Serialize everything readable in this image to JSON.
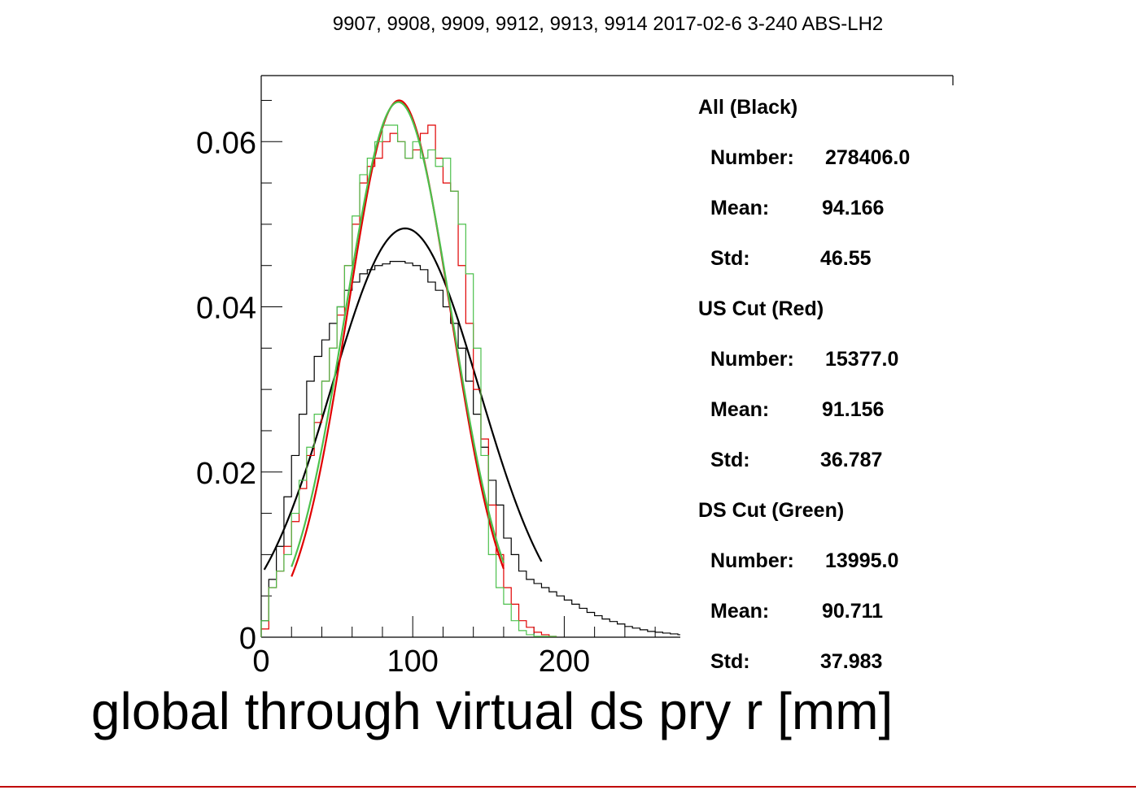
{
  "chart_data": {
    "type": "line",
    "title": "9907, 9908, 9909, 9912, 9913, 9914 2017-02-6 3-240 ABS-LH2",
    "xlabel": "global through virtual ds pry r [mm]",
    "ylabel": "",
    "xlim": [
      0,
      280
    ],
    "ylim": [
      0,
      0.068
    ],
    "x_ticks": [
      0,
      100,
      200
    ],
    "x_tick_labels": [
      "0",
      "100",
      "200"
    ],
    "y_ticks": [
      0,
      0.02,
      0.04,
      0.06
    ],
    "y_tick_labels": [
      "0",
      "0.02",
      "0.04",
      "0.06"
    ],
    "grid": false,
    "bin_width": 10,
    "series": [
      {
        "name": "All (Black)",
        "color": "#000000",
        "hist_x": [
          0,
          5,
          10,
          15,
          20,
          25,
          30,
          35,
          40,
          45,
          50,
          55,
          60,
          65,
          70,
          75,
          80,
          85,
          90,
          95,
          100,
          105,
          110,
          115,
          120,
          125,
          130,
          135,
          140,
          145,
          150,
          155,
          160,
          165,
          170,
          175,
          180,
          185,
          190,
          195,
          200,
          205,
          210,
          215,
          220,
          225,
          230,
          235,
          240,
          245,
          250,
          255,
          260,
          265,
          270,
          275
        ],
        "hist_y": [
          0.002,
          0.007,
          0.011,
          0.017,
          0.022,
          0.027,
          0.031,
          0.034,
          0.036,
          0.038,
          0.04,
          0.042,
          0.043,
          0.044,
          0.0445,
          0.045,
          0.0452,
          0.0455,
          0.0455,
          0.0453,
          0.045,
          0.0445,
          0.043,
          0.042,
          0.04,
          0.038,
          0.035,
          0.031,
          0.027,
          0.023,
          0.019,
          0.016,
          0.012,
          0.01,
          0.008,
          0.007,
          0.0065,
          0.006,
          0.0055,
          0.005,
          0.0045,
          0.004,
          0.0035,
          0.003,
          0.0026,
          0.0022,
          0.0019,
          0.0016,
          0.0013,
          0.0011,
          0.0009,
          0.0007,
          0.0006,
          0.0005,
          0.0004,
          0.0003
        ],
        "fit": {
          "amplitude": 0.0495,
          "mean": 95,
          "sigma": 49,
          "x_range": [
            2,
            185
          ]
        }
      },
      {
        "name": "US Cut (Red)",
        "color": "#e00000",
        "hist_x": [
          0,
          5,
          10,
          15,
          20,
          25,
          30,
          35,
          40,
          45,
          50,
          55,
          60,
          65,
          70,
          75,
          80,
          85,
          90,
          95,
          100,
          105,
          110,
          115,
          120,
          125,
          130,
          135,
          140,
          145,
          150,
          155,
          160,
          165,
          170,
          175,
          180,
          185,
          190
        ],
        "hist_y": [
          0.001,
          0.006,
          0.008,
          0.011,
          0.014,
          0.018,
          0.022,
          0.026,
          0.031,
          0.035,
          0.039,
          0.045,
          0.05,
          0.055,
          0.057,
          0.058,
          0.06,
          0.061,
          0.06,
          0.058,
          0.059,
          0.061,
          0.062,
          0.058,
          0.055,
          0.054,
          0.045,
          0.038,
          0.03,
          0.024,
          0.016,
          0.01,
          0.006,
          0.004,
          0.002,
          0.0012,
          0.0006,
          0.0003,
          0.0001
        ],
        "fit": {
          "amplitude": 0.065,
          "mean": 91,
          "sigma": 34,
          "x_range": [
            20,
            160
          ]
        }
      },
      {
        "name": "DS Cut (Green)",
        "color": "#4cc04c",
        "hist_x": [
          0,
          5,
          10,
          15,
          20,
          25,
          30,
          35,
          40,
          45,
          50,
          55,
          60,
          65,
          70,
          75,
          80,
          85,
          90,
          95,
          100,
          105,
          110,
          115,
          120,
          125,
          130,
          135,
          140,
          145,
          150,
          155,
          160,
          165,
          170,
          175,
          180,
          185,
          190
        ],
        "hist_y": [
          0.002,
          0.006,
          0.008,
          0.01,
          0.015,
          0.019,
          0.023,
          0.027,
          0.031,
          0.035,
          0.04,
          0.045,
          0.051,
          0.056,
          0.058,
          0.06,
          0.062,
          0.062,
          0.06,
          0.058,
          0.06,
          0.058,
          0.059,
          0.057,
          0.058,
          0.054,
          0.05,
          0.044,
          0.035,
          0.022,
          0.01,
          0.006,
          0.004,
          0.002,
          0.0008,
          0.0003,
          0.0001,
          0.0001,
          0.0001
        ],
        "fit": {
          "amplitude": 0.0648,
          "mean": 90.5,
          "sigma": 35,
          "x_range": [
            20,
            160
          ]
        }
      }
    ],
    "legend_position": "right",
    "stats": [
      {
        "header": "All (Black)",
        "rows": [
          {
            "label": "Number:",
            "value": "278406.0"
          },
          {
            "label": "Mean:",
            "value": "94.166"
          },
          {
            "label": "Std:",
            "value": "46.55"
          }
        ]
      },
      {
        "header": "US Cut (Red)",
        "rows": [
          {
            "label": "Number:",
            "value": "15377.0"
          },
          {
            "label": "Mean:",
            "value": "91.156"
          },
          {
            "label": "Std:",
            "value": "36.787"
          }
        ]
      },
      {
        "header": "DS Cut (Green)",
        "rows": [
          {
            "label": "Number:",
            "value": "13995.0"
          },
          {
            "label": "Mean:",
            "value": "90.711"
          },
          {
            "label": "Std:",
            "value": "37.983"
          }
        ]
      }
    ]
  }
}
